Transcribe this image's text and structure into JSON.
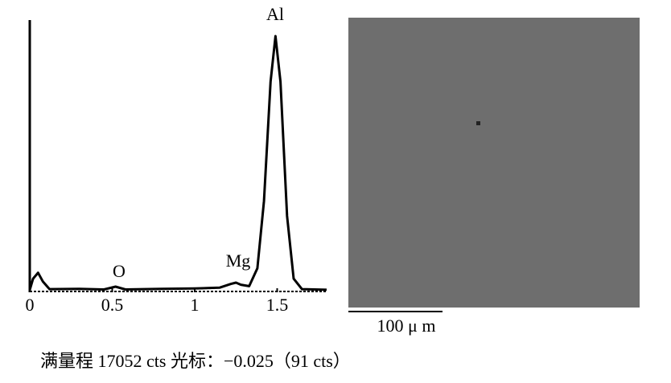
{
  "chart_data": {
    "type": "line",
    "x": [
      0,
      0.02,
      0.05,
      0.08,
      0.12,
      0.3,
      0.45,
      0.52,
      0.58,
      0.8,
      1.0,
      1.15,
      1.22,
      1.25,
      1.28,
      1.33,
      1.38,
      1.42,
      1.46,
      1.49,
      1.52,
      1.56,
      1.6,
      1.65,
      1.8
    ],
    "values": [
      50,
      800,
      1200,
      600,
      100,
      120,
      80,
      270,
      80,
      120,
      150,
      200,
      450,
      540,
      400,
      300,
      1500,
      6000,
      14000,
      17052,
      14000,
      5000,
      800,
      100,
      60
    ],
    "color": "#000000",
    "xlim": [
      0,
      1.8
    ],
    "xticks": [
      0,
      0.5,
      1,
      1.5
    ],
    "ylim": [
      0,
      17052
    ],
    "annotations": [
      "Al",
      "Mg",
      "O"
    ],
    "scale_bar": "100 μ m",
    "caption": "满量程 17052 cts 光标：−0.025（91 cts）"
  }
}
